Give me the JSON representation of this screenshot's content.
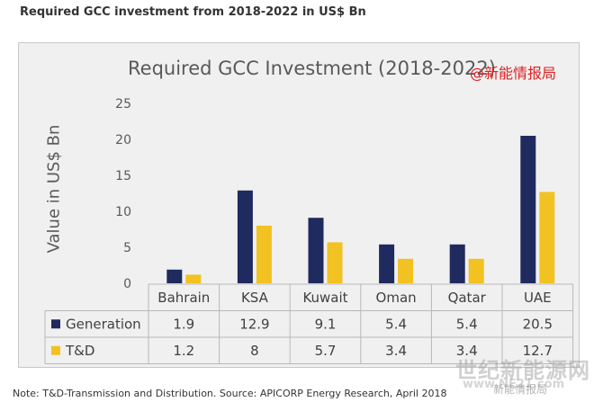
{
  "page": {
    "heading": "Required GCC investment from 2018-2022 in US$ Bn",
    "note": "Note: T&D-Transmission and Distribution. Source: APICORP Energy Research, April 2018"
  },
  "watermarks": {
    "top": "@新能情报局",
    "bottom": "世纪新能源网",
    "sub": "新能情报局",
    "site": "www.NE21.com"
  },
  "chart_data": {
    "type": "bar",
    "title": "Required GCC Investment (2018-2022)",
    "xlabel": "",
    "ylabel": "Value in US$ Bn",
    "ylim": [
      0,
      25
    ],
    "yticks": [
      0,
      5,
      10,
      15,
      20,
      25
    ],
    "grid": false,
    "legend": "data-table",
    "categories": [
      "Bahrain",
      "KSA",
      "Kuwait",
      "Oman",
      "Qatar",
      "UAE"
    ],
    "series": [
      {
        "name": "Generation",
        "color": "#1f2a5e",
        "values": [
          1.9,
          12.9,
          9.1,
          5.4,
          5.4,
          20.5
        ],
        "labels": [
          "1.9",
          "12.9",
          "9.1",
          "5.4",
          "5.4",
          "20.5"
        ]
      },
      {
        "name": "T&D",
        "color": "#f2c222",
        "values": [
          1.2,
          8,
          5.7,
          3.4,
          3.4,
          12.7
        ],
        "labels": [
          "1.2",
          "8",
          "5.7",
          "3.4",
          "3.4",
          "12.7"
        ]
      }
    ]
  }
}
